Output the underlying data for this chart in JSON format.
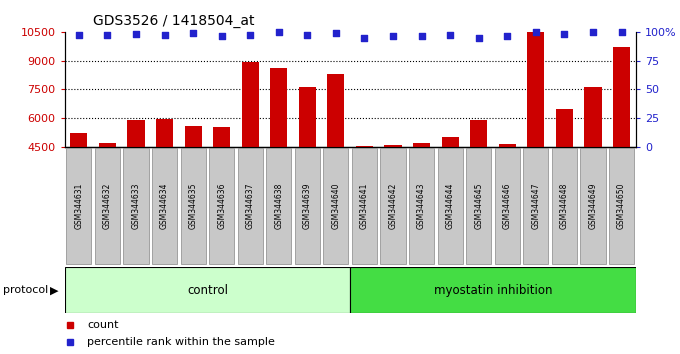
{
  "title": "GDS3526 / 1418504_at",
  "samples": [
    "GSM344631",
    "GSM344632",
    "GSM344633",
    "GSM344634",
    "GSM344635",
    "GSM344636",
    "GSM344637",
    "GSM344638",
    "GSM344639",
    "GSM344640",
    "GSM344641",
    "GSM344642",
    "GSM344643",
    "GSM344644",
    "GSM344645",
    "GSM344646",
    "GSM344647",
    "GSM344648",
    "GSM344649",
    "GSM344650"
  ],
  "counts": [
    5200,
    4700,
    5900,
    5950,
    5600,
    5550,
    8950,
    8600,
    7600,
    8300,
    4550,
    4600,
    4700,
    5000,
    5900,
    4650,
    10500,
    6500,
    7600,
    9700
  ],
  "percentile_ranks": [
    97,
    97,
    98,
    97,
    99,
    96,
    97,
    100,
    97,
    99,
    95,
    96,
    96,
    97,
    95,
    96,
    100,
    98,
    100,
    100
  ],
  "n_control": 10,
  "n_myostatin": 10,
  "ymin": 4500,
  "ymax": 10500,
  "yticks": [
    4500,
    6000,
    7500,
    9000,
    10500
  ],
  "y2ticks": [
    0,
    25,
    50,
    75,
    100
  ],
  "bar_color": "#CC0000",
  "dot_color": "#2222CC",
  "control_facecolor": "#CCFFCC",
  "myostatin_facecolor": "#44DD44",
  "legend_count_label": "count",
  "legend_pct_label": "percentile rank within the sample",
  "protocol_label": "protocol",
  "control_label": "control",
  "myostatin_label": "myostatin inhibition"
}
